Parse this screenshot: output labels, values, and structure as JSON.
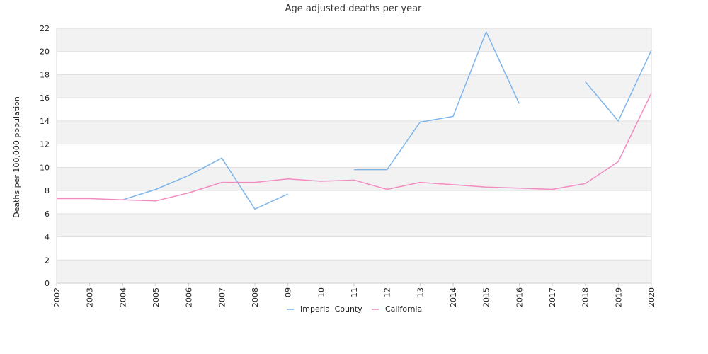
{
  "chart_data": {
    "type": "line",
    "title": "Age adjusted deaths per year",
    "xlabel": "",
    "ylabel": "Deaths per 100,000 population",
    "ylim": [
      0,
      22
    ],
    "yticks": [
      0,
      2,
      4,
      6,
      8,
      10,
      12,
      14,
      16,
      18,
      20,
      22
    ],
    "categories": [
      "2002",
      "2003",
      "2004",
      "2005",
      "2006",
      "2007",
      "2008",
      "09",
      "10",
      "11",
      "12",
      "13",
      "2014",
      "2015",
      "2016",
      "2017",
      "2018",
      "2019",
      "2020"
    ],
    "grid": "alternating horizontal bands",
    "legend_position": "bottom-center",
    "series": [
      {
        "name": "Imperial County",
        "color": "#7cb5ec",
        "values": [
          null,
          null,
          7.2,
          8.1,
          9.3,
          10.8,
          6.4,
          7.7,
          null,
          9.8,
          9.8,
          13.9,
          14.4,
          21.7,
          15.5,
          null,
          17.4,
          14.0,
          20.1
        ]
      },
      {
        "name": "California",
        "color": "#f28cc0",
        "values": [
          7.3,
          7.3,
          7.2,
          7.1,
          7.8,
          8.7,
          8.7,
          9.0,
          8.8,
          8.9,
          8.1,
          8.7,
          8.5,
          8.3,
          8.2,
          8.1,
          8.6,
          10.5,
          16.4
        ]
      }
    ]
  }
}
